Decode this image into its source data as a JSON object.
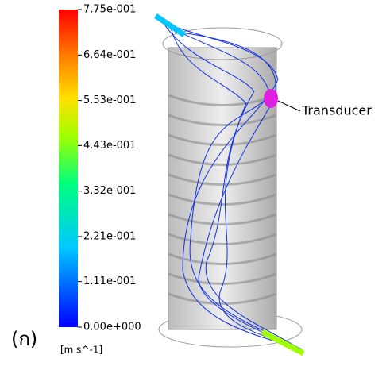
{
  "colorbar": {
    "range": [
      0,
      0.775
    ],
    "ticks": [
      {
        "value": 0.775,
        "label": "7.75e-001"
      },
      {
        "value": 0.664,
        "label": "6.64e-001"
      },
      {
        "value": 0.553,
        "label": "5.53e-001"
      },
      {
        "value": 0.443,
        "label": "4.43e-001"
      },
      {
        "value": 0.332,
        "label": "3.32e-001"
      },
      {
        "value": 0.221,
        "label": "2.21e-001"
      },
      {
        "value": 0.111,
        "label": "1.11e-001"
      },
      {
        "value": 0,
        "label": "0.00e+000"
      }
    ],
    "unit": "[m s^-1]"
  },
  "annotation": "Transducer",
  "panel_label": "(ก)"
}
